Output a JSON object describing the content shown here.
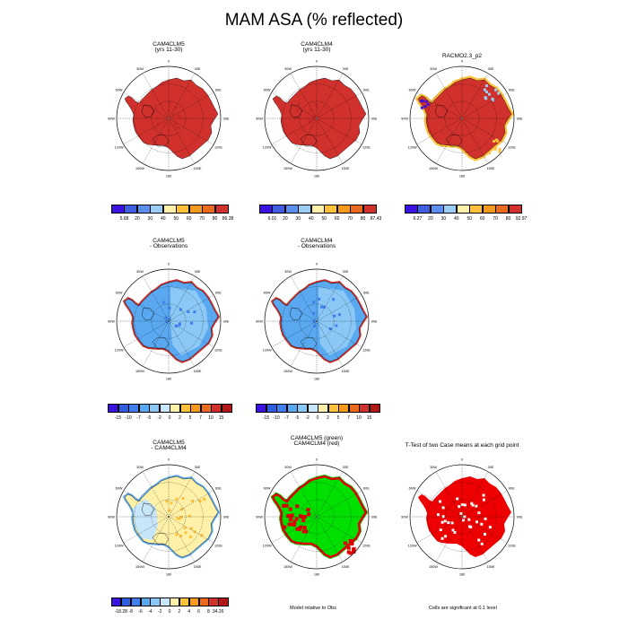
{
  "title": "MAM ASA (% reflected)",
  "longitude_labels": {
    "top": "0",
    "t30w": "30W",
    "t30e": "30E",
    "t60w": "60W",
    "t60e": "60E",
    "left": "90W",
    "right": "90E",
    "b120w": "120W",
    "b120e": "120E",
    "b150w": "150W",
    "b150e": "150E",
    "bottom": "180"
  },
  "panels": {
    "p1": {
      "title1": "CAM4CLM5",
      "title2": "(yrs 11-30)"
    },
    "p2": {
      "title1": "CAM4CLM4",
      "title2": "(yrs 11-30)"
    },
    "p3": {
      "title1": "RACMO2.3_p2"
    },
    "p4": {
      "title1": "CAM4CLM5",
      "title2": "- Observations"
    },
    "p5": {
      "title1": "CAM4CLM4",
      "title2": "- Observations"
    },
    "p6": {
      "title1": "CAM4CLM5",
      "title2": "- CAM4CLM4"
    },
    "p7": {
      "title1": "CAM4CLM5 (green)",
      "title2": "CAM4CLM4 (red)"
    },
    "p8": {
      "title1": "T-Test of two Case means at each grid point"
    }
  },
  "notes": {
    "model_relative": "Model relative to Obs",
    "significance": "Cells are significant at 0.1 level"
  },
  "chart_data": [
    {
      "type": "heatmap",
      "projection": "south-polar stereographic",
      "title": "CAM4CLM5 (yrs 11-30)",
      "dominant_color": "#d0312d",
      "colorbar": {
        "labels": [
          "5.68",
          "20",
          "30",
          "40",
          "50",
          "60",
          "70",
          "80",
          "86.38"
        ],
        "colors": [
          "#3b12e0",
          "#3f5fe0",
          "#5a8ff0",
          "#9ccdf5",
          "#fff1a8",
          "#fdc13c",
          "#f59a1c",
          "#ec6a1d",
          "#d0312d"
        ]
      }
    },
    {
      "type": "heatmap",
      "projection": "south-polar stereographic",
      "title": "CAM4CLM4 (yrs 11-30)",
      "dominant_color": "#d0312d",
      "colorbar": {
        "labels": [
          "6.01",
          "20",
          "30",
          "40",
          "50",
          "60",
          "70",
          "80",
          "87.43"
        ],
        "colors": [
          "#3b12e0",
          "#3f5fe0",
          "#5a8ff0",
          "#9ccdf5",
          "#fff1a8",
          "#fdc13c",
          "#f59a1c",
          "#ec6a1d",
          "#d0312d"
        ]
      }
    },
    {
      "type": "heatmap",
      "projection": "south-polar stereographic",
      "title": "RACMO2.3_p2",
      "dominant_color": "#d0312d",
      "colorbar": {
        "labels": [
          "6.27",
          "20",
          "30",
          "40",
          "50",
          "60",
          "70",
          "80",
          "92.97"
        ],
        "colors": [
          "#3b12e0",
          "#3f5fe0",
          "#5a8ff0",
          "#9ccdf5",
          "#fff1a8",
          "#fdc13c",
          "#f59a1c",
          "#ec6a1d",
          "#d0312d"
        ]
      }
    },
    {
      "type": "heatmap",
      "projection": "south-polar stereographic",
      "title": "CAM4CLM5 - Observations",
      "dominant_color": "#5aa9f0",
      "colorbar": {
        "labels": [
          "-15",
          "-10",
          "-7",
          "-5",
          "-2",
          "0",
          "2",
          "5",
          "7",
          "10",
          "15"
        ],
        "colors": [
          "#3b12e0",
          "#2f5fe0",
          "#3f7ff0",
          "#5aa9f0",
          "#8cc8f5",
          "#c8e6fa",
          "#fff1a8",
          "#fdc13c",
          "#f59a1c",
          "#ec6a1d",
          "#d0312d",
          "#b01818"
        ]
      }
    },
    {
      "type": "heatmap",
      "projection": "south-polar stereographic",
      "title": "CAM4CLM4 - Observations",
      "dominant_color": "#5aa9f0",
      "colorbar": {
        "labels": [
          "-15",
          "-10",
          "-7",
          "-5",
          "-2",
          "0",
          "2",
          "5",
          "7",
          "10",
          "15"
        ],
        "colors": [
          "#3b12e0",
          "#2f5fe0",
          "#3f7ff0",
          "#5aa9f0",
          "#8cc8f5",
          "#c8e6fa",
          "#fff1a8",
          "#fdc13c",
          "#f59a1c",
          "#ec6a1d",
          "#d0312d",
          "#b01818"
        ]
      }
    },
    {
      "type": "heatmap",
      "projection": "south-polar stereographic",
      "title": "CAM4CLM5 - CAM4CLM4",
      "dominant_color": "#fbe9a0",
      "colorbar": {
        "labels": [
          "-18.28",
          "-8",
          "-6",
          "-4",
          "-2",
          "0",
          "2",
          "4",
          "6",
          "8",
          "34.26"
        ],
        "colors": [
          "#3b12e0",
          "#2f5fe0",
          "#3f7ff0",
          "#5aa9f0",
          "#8cc8f5",
          "#c8e6fa",
          "#fff1a8",
          "#fdc13c",
          "#f59a1c",
          "#ec6a1d",
          "#d0312d",
          "#b01818"
        ]
      }
    },
    {
      "type": "heatmap",
      "projection": "south-polar stereographic",
      "title": "CAM4CLM5 (green) CAM4CLM4 (red)",
      "colors": {
        "CAM4CLM5": "#00e000",
        "CAM4CLM4": "#e00000"
      }
    },
    {
      "type": "heatmap",
      "projection": "south-polar stereographic",
      "title": "T-Test of two Case means at each grid point",
      "colors": {
        "significant": "#ee0000"
      }
    }
  ]
}
